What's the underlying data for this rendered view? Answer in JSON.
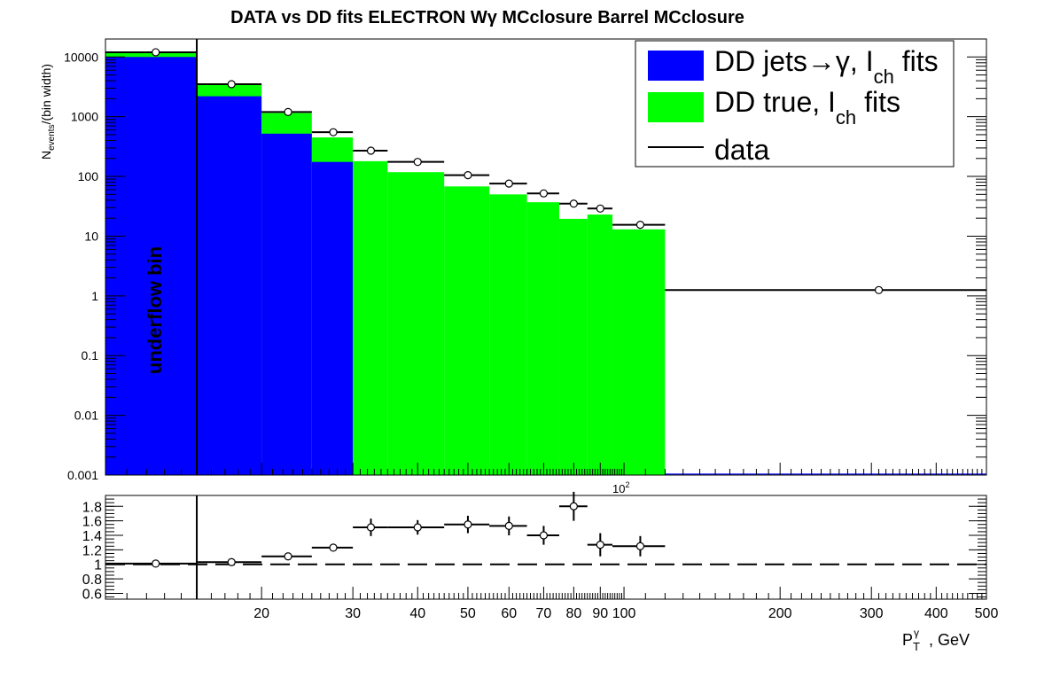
{
  "chart_data": {
    "type": "bar",
    "title": "DATA vs DD fits ELECTRON Wγ  MCclosure Barrel  MCclosure",
    "ylabel": "N_events/(bin width)",
    "ylabel_main": "N",
    "ylabel_sub": "events",
    "ylabel_rest": "/(bin width)",
    "xlabel_main": "P",
    "xlabel_sup": "γ",
    "xlabel_sub": "T",
    "xlabel_rest": ", GeV",
    "annotation": "underflow bin",
    "xlim": [
      10,
      500
    ],
    "underflow_edge": 15,
    "ylim": [
      0.001,
      20000
    ],
    "ratio_ylim": [
      0.52,
      1.95
    ],
    "ratio_reference": 1,
    "x_scale_marker": "10",
    "x_scale_marker_exp": "2",
    "y_ticks": [
      {
        "value": 10000,
        "label": "10000"
      },
      {
        "value": 1000,
        "label": "1000"
      },
      {
        "value": 100,
        "label": "100"
      },
      {
        "value": 10,
        "label": "10"
      },
      {
        "value": 1,
        "label": "1"
      },
      {
        "value": 0.1,
        "label": "0.1"
      },
      {
        "value": 0.01,
        "label": "0.01"
      },
      {
        "value": 0.001,
        "label": "0.001"
      }
    ],
    "ratio_ticks": [
      {
        "value": 1.8,
        "label": "1.8"
      },
      {
        "value": 1.6,
        "label": "1.6"
      },
      {
        "value": 1.4,
        "label": "1.4"
      },
      {
        "value": 1.2,
        "label": "1.2"
      },
      {
        "value": 1.0,
        "label": "1"
      },
      {
        "value": 0.8,
        "label": "0.8"
      },
      {
        "value": 0.6,
        "label": "0.6"
      }
    ],
    "x_ticks": [
      {
        "value": 20,
        "label": "20"
      },
      {
        "value": 30,
        "label": "30"
      },
      {
        "value": 40,
        "label": "40"
      },
      {
        "value": 50,
        "label": "50"
      },
      {
        "value": 60,
        "label": "60"
      },
      {
        "value": 70,
        "label": "70"
      },
      {
        "value": 80,
        "label": "80"
      },
      {
        "value": 90,
        "label": "90"
      },
      {
        "value": 100,
        "label": "100"
      },
      {
        "value": 200,
        "label": "200"
      },
      {
        "value": 300,
        "label": "300"
      },
      {
        "value": 400,
        "label": "400"
      },
      {
        "value": 500,
        "label": "500"
      }
    ],
    "bins": [
      {
        "low": 10,
        "high": 15,
        "jets": 10000,
        "total": 12000
      },
      {
        "low": 15,
        "high": 20,
        "jets": 2200,
        "total": 3400
      },
      {
        "low": 20,
        "high": 25,
        "jets": 520,
        "total": 1150
      },
      {
        "low": 25,
        "high": 30,
        "jets": 175,
        "total": 450
      },
      {
        "low": 30,
        "high": 35,
        "jets": 0,
        "total": 180
      },
      {
        "low": 35,
        "high": 45,
        "jets": 0,
        "total": 118
      },
      {
        "low": 45,
        "high": 55,
        "jets": 0,
        "total": 68
      },
      {
        "low": 55,
        "high": 65,
        "jets": 0,
        "total": 50
      },
      {
        "low": 65,
        "high": 75,
        "jets": 0,
        "total": 37
      },
      {
        "low": 75,
        "high": 85,
        "jets": 0,
        "total": 19.5
      },
      {
        "low": 85,
        "high": 95,
        "jets": 0,
        "total": 23
      },
      {
        "low": 95,
        "high": 120,
        "jets": 0,
        "total": 13
      },
      {
        "low": 120,
        "high": 500,
        "jets": 0,
        "total": 0
      }
    ],
    "data_points": [
      {
        "x": 12.5,
        "xlo": 10,
        "xhi": 15,
        "y": 12000
      },
      {
        "x": 17.5,
        "xlo": 15,
        "xhi": 20,
        "y": 3500
      },
      {
        "x": 22.5,
        "xlo": 20,
        "xhi": 25,
        "y": 1200
      },
      {
        "x": 27.5,
        "xlo": 25,
        "xhi": 30,
        "y": 550
      },
      {
        "x": 32.5,
        "xlo": 30,
        "xhi": 35,
        "y": 270
      },
      {
        "x": 40,
        "xlo": 35,
        "xhi": 45,
        "y": 175
      },
      {
        "x": 50,
        "xlo": 45,
        "xhi": 55,
        "y": 105
      },
      {
        "x": 60,
        "xlo": 55,
        "xhi": 65,
        "y": 76
      },
      {
        "x": 70,
        "xlo": 65,
        "xhi": 75,
        "y": 52
      },
      {
        "x": 80,
        "xlo": 75,
        "xhi": 85,
        "y": 35
      },
      {
        "x": 90,
        "xlo": 85,
        "xhi": 95,
        "y": 29
      },
      {
        "x": 107.5,
        "xlo": 95,
        "xhi": 120,
        "y": 15.5
      },
      {
        "x": 310,
        "xlo": 120,
        "xhi": 500,
        "y": 1.25
      }
    ],
    "ratio_points": [
      {
        "x": 12.5,
        "xlo": 10,
        "xhi": 15,
        "y": 1.01,
        "err": 0.01
      },
      {
        "x": 17.5,
        "xlo": 15,
        "xhi": 20,
        "y": 1.03,
        "err": 0.02
      },
      {
        "x": 22.5,
        "xlo": 20,
        "xhi": 25,
        "y": 1.11,
        "err": 0.03
      },
      {
        "x": 27.5,
        "xlo": 25,
        "xhi": 30,
        "y": 1.23,
        "err": 0.05
      },
      {
        "x": 32.5,
        "xlo": 30,
        "xhi": 35,
        "y": 1.51,
        "err": 0.12
      },
      {
        "x": 40,
        "xlo": 35,
        "xhi": 45,
        "y": 1.51,
        "err": 0.1
      },
      {
        "x": 50,
        "xlo": 45,
        "xhi": 55,
        "y": 1.55,
        "err": 0.12
      },
      {
        "x": 60,
        "xlo": 55,
        "xhi": 65,
        "y": 1.53,
        "err": 0.13
      },
      {
        "x": 70,
        "xlo": 65,
        "xhi": 75,
        "y": 1.4,
        "err": 0.13
      },
      {
        "x": 80,
        "xlo": 75,
        "xhi": 85,
        "y": 1.8,
        "err": 0.2
      },
      {
        "x": 90,
        "xlo": 85,
        "xhi": 95,
        "y": 1.27,
        "err": 0.16
      },
      {
        "x": 107.5,
        "xlo": 95,
        "xhi": 120,
        "y": 1.25,
        "err": 0.14
      }
    ],
    "legend": {
      "placement": "top-right",
      "entries": [
        {
          "name": "jets",
          "prefix": "DD jets→γ, I",
          "sub": "ch",
          "suffix": " fits",
          "color": "#0000ff"
        },
        {
          "name": "true",
          "prefix": "DD true, I",
          "sub": "ch",
          "suffix": " fits",
          "color": "#00ff00"
        },
        {
          "name": "data",
          "prefix": "data",
          "sub": "",
          "suffix": "",
          "color": "#000000"
        }
      ]
    },
    "colors": {
      "jets": "#0000ff",
      "true": "#00ff00",
      "data": "#000000"
    }
  }
}
